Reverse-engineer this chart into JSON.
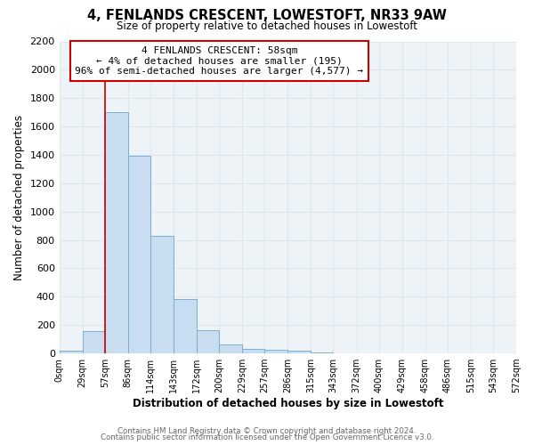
{
  "title": "4, FENLANDS CRESCENT, LOWESTOFT, NR33 9AW",
  "subtitle": "Size of property relative to detached houses in Lowestoft",
  "xlabel": "Distribution of detached houses by size in Lowestoft",
  "ylabel": "Number of detached properties",
  "bar_edges": [
    0,
    29,
    57,
    86,
    114,
    143,
    172,
    200,
    229,
    257,
    286,
    315,
    343,
    372,
    400,
    429,
    458,
    486,
    515,
    543,
    572
  ],
  "bar_heights": [
    20,
    155,
    1700,
    1395,
    830,
    385,
    165,
    65,
    30,
    25,
    20,
    5,
    0,
    0,
    0,
    0,
    0,
    0,
    0,
    0
  ],
  "bar_color": "#c8ddf0",
  "bar_edge_color": "#7aaed4",
  "property_line_x": 57,
  "property_line_color": "#cc0000",
  "annotation_title": "4 FENLANDS CRESCENT: 58sqm",
  "annotation_line1": "← 4% of detached houses are smaller (195)",
  "annotation_line2": "96% of semi-detached houses are larger (4,577) →",
  "annotation_box_facecolor": "#ffffff",
  "annotation_box_edgecolor": "#cc0000",
  "ylim": [
    0,
    2200
  ],
  "yticks": [
    0,
    200,
    400,
    600,
    800,
    1000,
    1200,
    1400,
    1600,
    1800,
    2000,
    2200
  ],
  "xtick_labels": [
    "0sqm",
    "29sqm",
    "57sqm",
    "86sqm",
    "114sqm",
    "143sqm",
    "172sqm",
    "200sqm",
    "229sqm",
    "257sqm",
    "286sqm",
    "315sqm",
    "343sqm",
    "372sqm",
    "400sqm",
    "429sqm",
    "458sqm",
    "486sqm",
    "515sqm",
    "543sqm",
    "572sqm"
  ],
  "footer_line1": "Contains HM Land Registry data © Crown copyright and database right 2024.",
  "footer_line2": "Contains public sector information licensed under the Open Government Licence v3.0.",
  "grid_color": "#dce8f0",
  "background_color": "#ffffff",
  "plot_bg_color": "#eef3f8"
}
